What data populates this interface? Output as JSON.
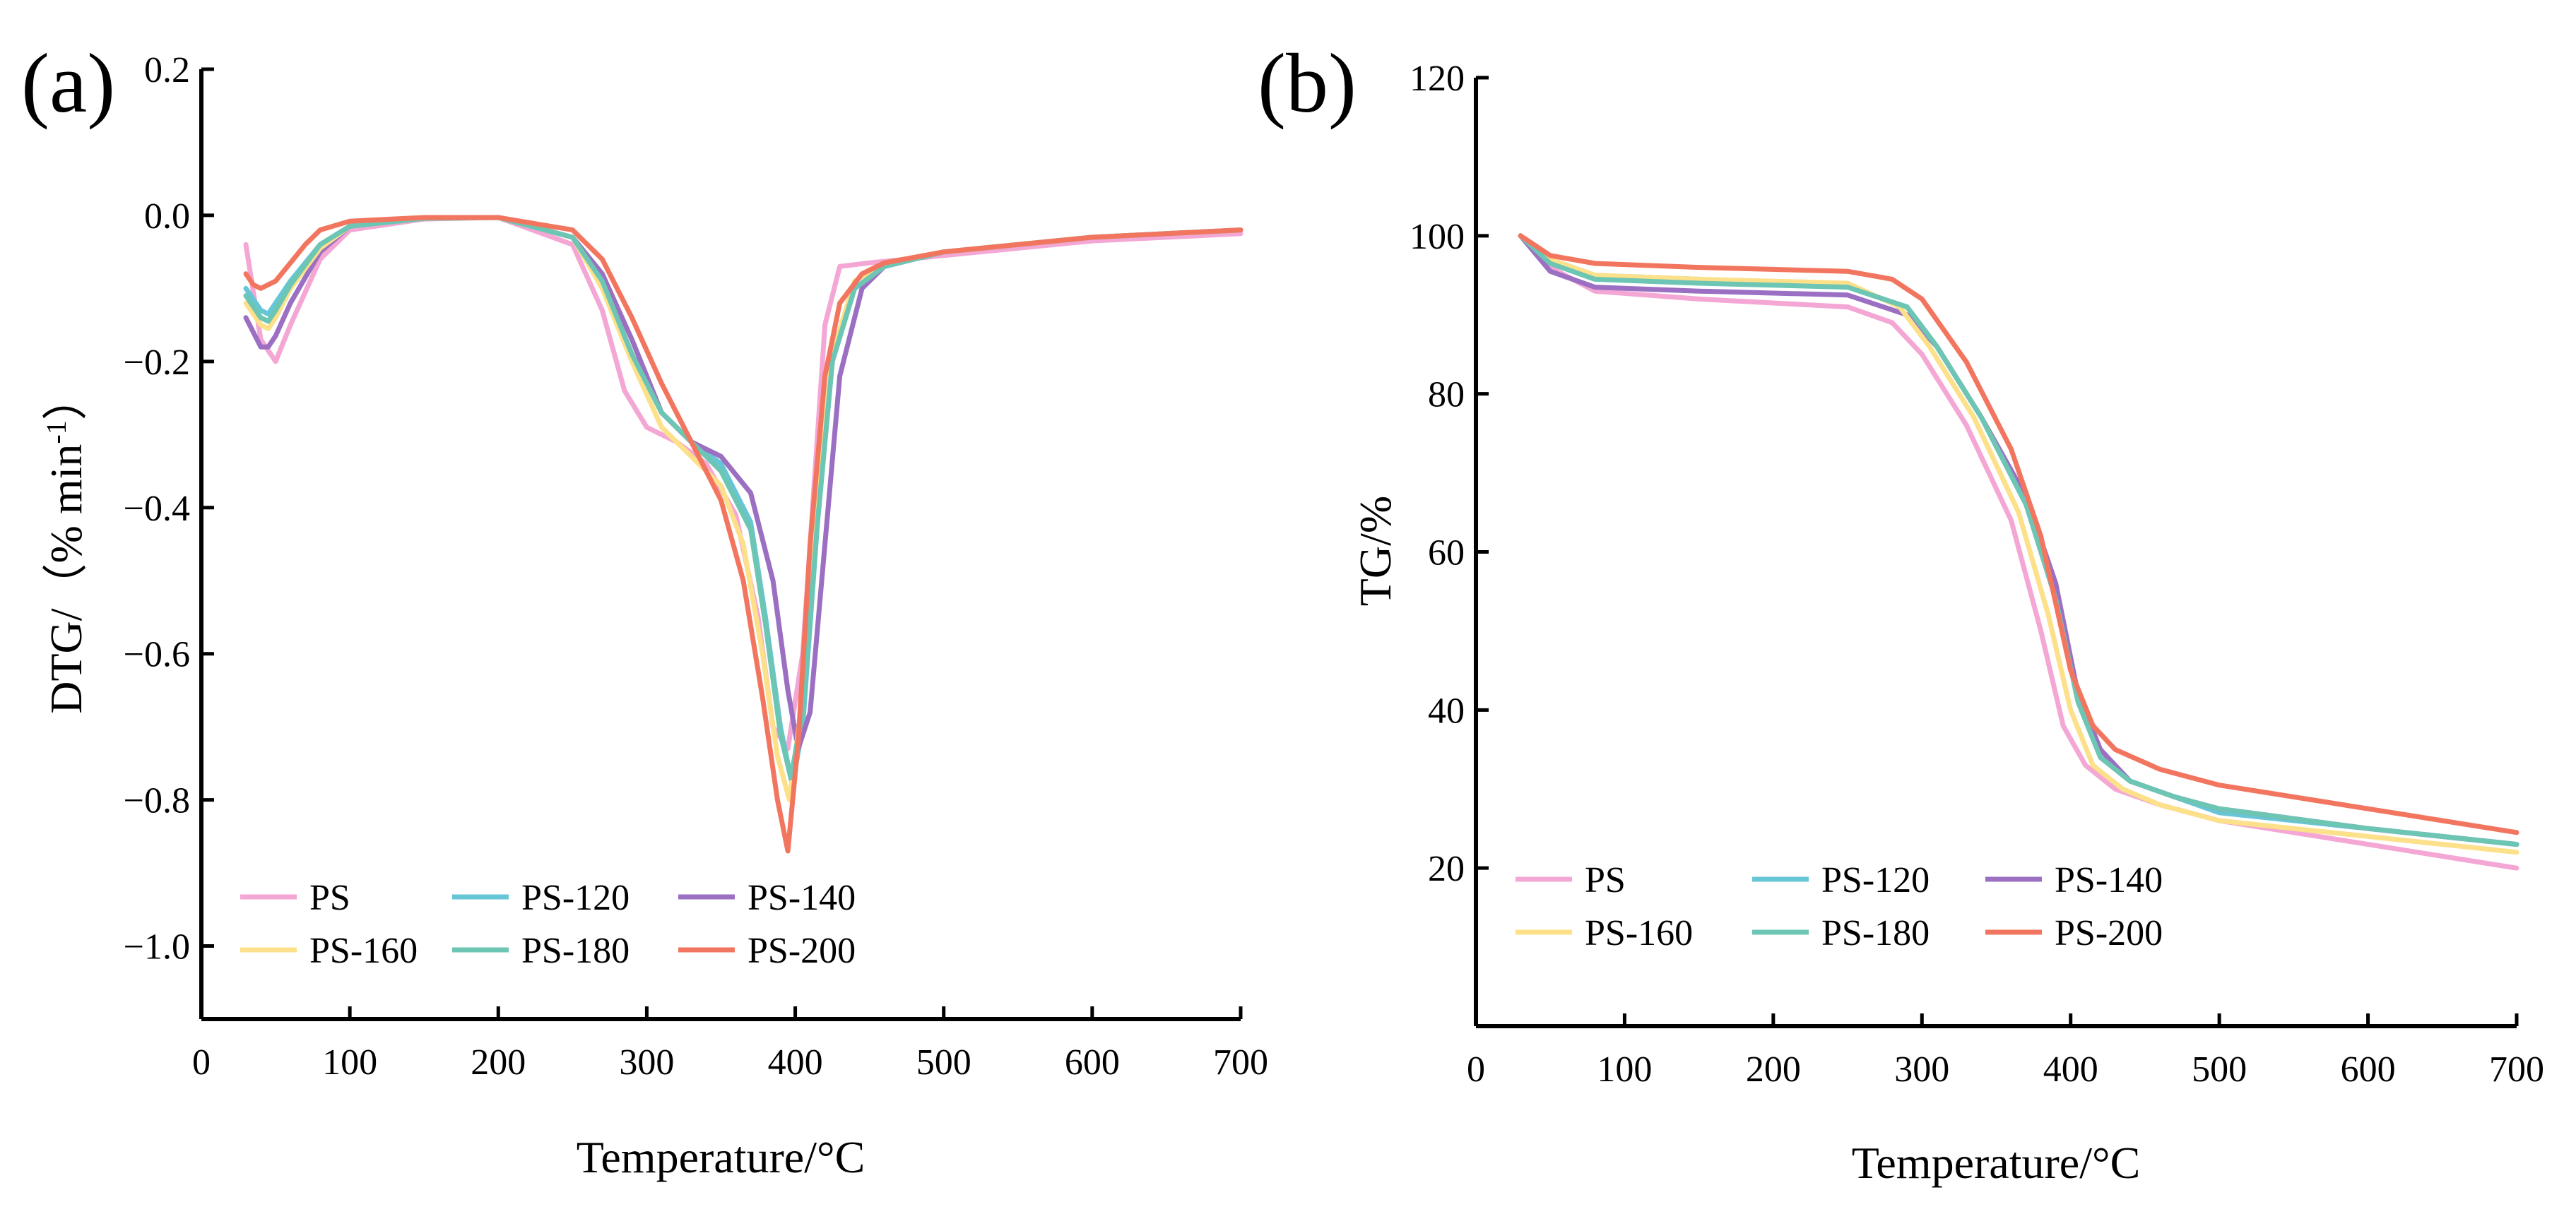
{
  "chart_data": [
    {
      "panel": "(a)",
      "type": "line",
      "xlabel": "Temperature/°C",
      "ylabel": "DTG/（% min",
      "ylabel_sup": "-1",
      "ylabel_close": "）",
      "xlim": [
        0,
        700
      ],
      "ylim": [
        -1.1,
        0.2
      ],
      "xticks": [
        0,
        100,
        200,
        300,
        400,
        500,
        600,
        700
      ],
      "yticks": [
        0.2,
        0.0,
        -0.2,
        -0.4,
        -0.6,
        -0.8,
        -1.0
      ],
      "ytick_labels": [
        "0.2",
        "0.0",
        "−0.2",
        "−0.4",
        "−0.6",
        "−0.8",
        "−1.0"
      ],
      "legend": [
        [
          "PS",
          "PS-120",
          "PS-140"
        ],
        [
          "PS-160",
          "PS-180",
          "PS-200"
        ]
      ],
      "series": [
        {
          "name": "PS",
          "color": "#f4a6d4",
          "x": [
            30,
            40,
            50,
            60,
            80,
            100,
            150,
            200,
            250,
            270,
            285,
            300,
            320,
            340,
            360,
            375,
            385,
            395,
            405,
            415,
            420,
            430,
            450,
            500,
            600,
            700
          ],
          "y": [
            -0.04,
            -0.17,
            -0.2,
            -0.15,
            -0.06,
            -0.02,
            -0.005,
            -0.003,
            -0.04,
            -0.13,
            -0.24,
            -0.29,
            -0.31,
            -0.34,
            -0.41,
            -0.55,
            -0.7,
            -0.73,
            -0.6,
            -0.3,
            -0.15,
            -0.07,
            -0.065,
            -0.055,
            -0.035,
            -0.025
          ]
        },
        {
          "name": "PS-120",
          "color": "#67c6d6",
          "x": [
            30,
            40,
            45,
            50,
            60,
            80,
            100,
            150,
            200,
            250,
            270,
            290,
            310,
            330,
            350,
            370,
            380,
            390,
            398,
            405,
            415,
            425,
            440,
            460,
            500,
            600,
            700
          ],
          "y": [
            -0.1,
            -0.13,
            -0.135,
            -0.12,
            -0.09,
            -0.04,
            -0.015,
            -0.004,
            -0.003,
            -0.03,
            -0.09,
            -0.19,
            -0.27,
            -0.31,
            -0.34,
            -0.42,
            -0.55,
            -0.7,
            -0.78,
            -0.7,
            -0.42,
            -0.2,
            -0.1,
            -0.07,
            -0.05,
            -0.03,
            -0.02
          ]
        },
        {
          "name": "PS-140",
          "color": "#9b6fc2",
          "x": [
            30,
            40,
            45,
            50,
            60,
            80,
            100,
            150,
            200,
            250,
            270,
            290,
            310,
            330,
            350,
            370,
            385,
            395,
            402,
            410,
            420,
            430,
            445,
            460,
            500,
            600,
            700
          ],
          "y": [
            -0.14,
            -0.18,
            -0.18,
            -0.165,
            -0.12,
            -0.05,
            -0.015,
            -0.004,
            -0.003,
            -0.03,
            -0.08,
            -0.17,
            -0.27,
            -0.31,
            -0.33,
            -0.38,
            -0.5,
            -0.65,
            -0.73,
            -0.68,
            -0.45,
            -0.22,
            -0.1,
            -0.07,
            -0.05,
            -0.03,
            -0.02
          ]
        },
        {
          "name": "PS-160",
          "color": "#fde08a",
          "x": [
            30,
            40,
            45,
            50,
            60,
            80,
            100,
            150,
            200,
            250,
            270,
            290,
            310,
            330,
            350,
            365,
            378,
            388,
            396,
            405,
            415,
            425,
            440,
            460,
            500,
            600,
            700
          ],
          "y": [
            -0.12,
            -0.15,
            -0.155,
            -0.14,
            -0.1,
            -0.045,
            -0.015,
            -0.004,
            -0.003,
            -0.03,
            -0.1,
            -0.2,
            -0.29,
            -0.33,
            -0.37,
            -0.45,
            -0.6,
            -0.74,
            -0.8,
            -0.66,
            -0.4,
            -0.19,
            -0.09,
            -0.065,
            -0.05,
            -0.03,
            -0.02
          ]
        },
        {
          "name": "PS-180",
          "color": "#6dc5b4",
          "x": [
            30,
            40,
            45,
            50,
            60,
            80,
            100,
            150,
            200,
            250,
            270,
            290,
            310,
            330,
            350,
            370,
            380,
            390,
            397,
            405,
            415,
            425,
            440,
            460,
            500,
            600,
            700
          ],
          "y": [
            -0.11,
            -0.14,
            -0.145,
            -0.13,
            -0.095,
            -0.04,
            -0.015,
            -0.004,
            -0.003,
            -0.03,
            -0.09,
            -0.19,
            -0.27,
            -0.31,
            -0.35,
            -0.43,
            -0.56,
            -0.71,
            -0.77,
            -0.68,
            -0.42,
            -0.2,
            -0.1,
            -0.07,
            -0.05,
            -0.03,
            -0.02
          ]
        },
        {
          "name": "PS-200",
          "color": "#f2765f",
          "x": [
            30,
            35,
            40,
            50,
            60,
            70,
            80,
            100,
            150,
            200,
            250,
            270,
            290,
            310,
            330,
            350,
            365,
            378,
            388,
            395,
            402,
            410,
            420,
            430,
            445,
            460,
            500,
            600,
            700
          ],
          "y": [
            -0.08,
            -0.095,
            -0.1,
            -0.09,
            -0.065,
            -0.04,
            -0.02,
            -0.008,
            -0.003,
            -0.003,
            -0.02,
            -0.06,
            -0.14,
            -0.23,
            -0.31,
            -0.39,
            -0.5,
            -0.66,
            -0.8,
            -0.87,
            -0.72,
            -0.45,
            -0.22,
            -0.12,
            -0.08,
            -0.065,
            -0.05,
            -0.03,
            -0.02
          ]
        }
      ]
    },
    {
      "panel": "(b)",
      "type": "line",
      "xlabel": "Temperature/°C",
      "ylabel": "TG/%",
      "xlim": [
        0,
        700
      ],
      "ylim": [
        0,
        120
      ],
      "xticks": [
        0,
        100,
        200,
        300,
        400,
        500,
        600,
        700
      ],
      "yticks": [
        20,
        40,
        60,
        80,
        100,
        120
      ],
      "ytick_labels": [
        "20",
        "40",
        "60",
        "80",
        "100",
        "120"
      ],
      "legend": [
        [
          "PS",
          "PS-120",
          "PS-140"
        ],
        [
          "PS-160",
          "PS-180",
          "PS-200"
        ]
      ],
      "series": [
        {
          "name": "PS",
          "color": "#f4a6d4",
          "x": [
            30,
            50,
            80,
            150,
            250,
            280,
            300,
            330,
            360,
            380,
            395,
            410,
            430,
            460,
            500,
            600,
            700
          ],
          "y": [
            100,
            96,
            93,
            92,
            91,
            89,
            85,
            76,
            64,
            50,
            38,
            33,
            30,
            28,
            26,
            23,
            20
          ]
        },
        {
          "name": "PS-120",
          "color": "#67c6d6",
          "x": [
            30,
            50,
            80,
            150,
            250,
            290,
            310,
            340,
            370,
            390,
            405,
            420,
            440,
            470,
            500,
            600,
            700
          ],
          "y": [
            100,
            97,
            95,
            94.5,
            93.5,
            91,
            86,
            77,
            66,
            55,
            42,
            35,
            31,
            29,
            27,
            25,
            23
          ]
        },
        {
          "name": "PS-140",
          "color": "#9b6fc2",
          "x": [
            30,
            50,
            80,
            150,
            250,
            290,
            310,
            340,
            370,
            390,
            405,
            420,
            440,
            470,
            500,
            600,
            700
          ],
          "y": [
            100,
            95.5,
            93.5,
            93,
            92.5,
            90,
            86,
            77,
            67,
            56,
            42,
            35,
            31,
            29,
            27.5,
            25,
            23
          ]
        },
        {
          "name": "PS-160",
          "color": "#fde08a",
          "x": [
            30,
            50,
            80,
            150,
            250,
            285,
            305,
            335,
            365,
            385,
            400,
            415,
            435,
            460,
            500,
            600,
            700
          ],
          "y": [
            100,
            97,
            95,
            94.5,
            94,
            91,
            86,
            77,
            65,
            52,
            40,
            33,
            30,
            28,
            26,
            24,
            22
          ]
        },
        {
          "name": "PS-180",
          "color": "#6dc5b4",
          "x": [
            30,
            50,
            80,
            150,
            250,
            290,
            310,
            340,
            370,
            390,
            405,
            420,
            440,
            470,
            500,
            600,
            700
          ],
          "y": [
            100,
            96.5,
            94.5,
            94,
            93.5,
            91,
            86,
            77,
            66,
            54,
            41,
            34,
            31,
            29,
            27.5,
            25,
            23
          ]
        },
        {
          "name": "PS-200",
          "color": "#f2765f",
          "x": [
            30,
            50,
            80,
            150,
            250,
            280,
            300,
            330,
            360,
            380,
            400,
            415,
            430,
            460,
            500,
            600,
            700
          ],
          "y": [
            100,
            97.5,
            96.5,
            96,
            95.5,
            94.5,
            92,
            84,
            73,
            62,
            45,
            38,
            35,
            32.5,
            30.5,
            27.5,
            24.5
          ]
        }
      ]
    }
  ]
}
